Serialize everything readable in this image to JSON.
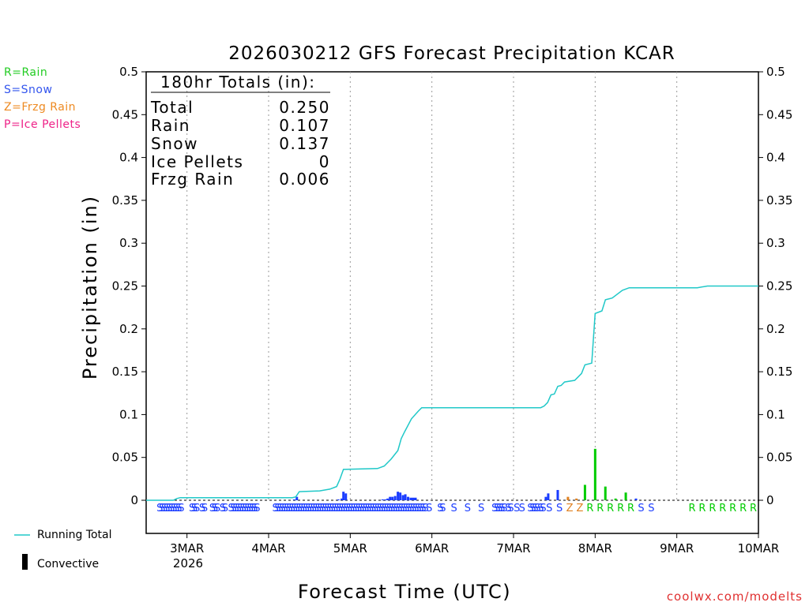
{
  "chart_data": {
    "type": "bar+line",
    "title": "2026030212 GFS Forecast Precipitation KCAR",
    "xlabel": "Forecast Time (UTC)",
    "ylabel": "Precipitation (in)",
    "ylim": [
      0,
      0.5
    ],
    "yticks": [
      0,
      0.05,
      0.1,
      0.15,
      0.2,
      0.25,
      0.3,
      0.35,
      0.4,
      0.45,
      0.5
    ],
    "ytick_labels": [
      "0",
      "0.05",
      "0.1",
      "0.15",
      "0.2",
      "0.25",
      "0.3",
      "0.35",
      "0.4",
      "0.45",
      "0.5"
    ],
    "xlim_hours": [
      0,
      180
    ],
    "xticks_hours": [
      12,
      36,
      60,
      84,
      108,
      132,
      156,
      180
    ],
    "xtick_labels": [
      "3MAR",
      "4MAR",
      "5MAR",
      "6MAR",
      "7MAR",
      "8MAR",
      "9MAR",
      "10MAR"
    ],
    "xtick_sublabel": "2026",
    "totals_header": "180hr Totals (in):",
    "totals": [
      {
        "label": "Total",
        "value": "0.250"
      },
      {
        "label": "Rain",
        "value": "0.107"
      },
      {
        "label": "Snow",
        "value": "0.137"
      },
      {
        "label": "Ice Pellets",
        "value": "0"
      },
      {
        "label": "Frzg Rain",
        "value": "0.006"
      }
    ],
    "type_legend": [
      {
        "text": "R=Rain",
        "color": "#22cc22"
      },
      {
        "text": "S=Snow",
        "color": "#3355ee"
      },
      {
        "text": "Z=Frzg Rain",
        "color": "#ee8a22"
      },
      {
        "text": "P=Ice Pellets",
        "color": "#ee2288"
      }
    ],
    "bottom_legend": {
      "running_total": "Running Total",
      "convective": "Convective"
    },
    "credit": "coolwx.com/modelts",
    "colors": {
      "rain": "#00cc00",
      "snow": "#1a3cff",
      "frzg": "#e08020",
      "running": "#20c8c8",
      "credit": "#e03030"
    },
    "running_total": [
      [
        0,
        0
      ],
      [
        8,
        0
      ],
      [
        9,
        0.002
      ],
      [
        10,
        0.003
      ],
      [
        43,
        0.003
      ],
      [
        44,
        0.004
      ],
      [
        45,
        0.01
      ],
      [
        51,
        0.011
      ],
      [
        54,
        0.013
      ],
      [
        56,
        0.016
      ],
      [
        57,
        0.025
      ],
      [
        58,
        0.036
      ],
      [
        68,
        0.037
      ],
      [
        70,
        0.04
      ],
      [
        72,
        0.048
      ],
      [
        74,
        0.058
      ],
      [
        75,
        0.072
      ],
      [
        76,
        0.08
      ],
      [
        78,
        0.095
      ],
      [
        80,
        0.104
      ],
      [
        81,
        0.108
      ],
      [
        116,
        0.108
      ],
      [
        117,
        0.11
      ],
      [
        118,
        0.114
      ],
      [
        119,
        0.123
      ],
      [
        120,
        0.124
      ],
      [
        121,
        0.133
      ],
      [
        122,
        0.134
      ],
      [
        123,
        0.138
      ],
      [
        126,
        0.14
      ],
      [
        128,
        0.148
      ],
      [
        129,
        0.158
      ],
      [
        131,
        0.16
      ],
      [
        132,
        0.218
      ],
      [
        134,
        0.221
      ],
      [
        135,
        0.234
      ],
      [
        137,
        0.236
      ],
      [
        140,
        0.245
      ],
      [
        142,
        0.248
      ],
      [
        144,
        0.248
      ],
      [
        162,
        0.248
      ],
      [
        165,
        0.25
      ],
      [
        180,
        0.25
      ]
    ],
    "bars": [
      {
        "h": 43.5,
        "v": 0.001,
        "t": "snow"
      },
      {
        "h": 44.3,
        "v": 0.004,
        "t": "snow"
      },
      {
        "h": 56.5,
        "v": 0.001,
        "t": "snow"
      },
      {
        "h": 57.5,
        "v": 0.002,
        "t": "snow"
      },
      {
        "h": 58.0,
        "v": 0.01,
        "t": "snow"
      },
      {
        "h": 58.7,
        "v": 0.008,
        "t": "snow"
      },
      {
        "h": 69.5,
        "v": 0.001,
        "t": "snow"
      },
      {
        "h": 70.3,
        "v": 0.001,
        "t": "snow"
      },
      {
        "h": 71.0,
        "v": 0.002,
        "t": "snow"
      },
      {
        "h": 71.7,
        "v": 0.004,
        "t": "snow"
      },
      {
        "h": 72.4,
        "v": 0.004,
        "t": "snow"
      },
      {
        "h": 73.2,
        "v": 0.005,
        "t": "snow"
      },
      {
        "h": 74.0,
        "v": 0.01,
        "t": "snow"
      },
      {
        "h": 74.7,
        "v": 0.009,
        "t": "snow"
      },
      {
        "h": 75.5,
        "v": 0.006,
        "t": "snow"
      },
      {
        "h": 76.2,
        "v": 0.007,
        "t": "snow"
      },
      {
        "h": 77.0,
        "v": 0.004,
        "t": "snow"
      },
      {
        "h": 77.8,
        "v": 0.003,
        "t": "snow"
      },
      {
        "h": 78.5,
        "v": 0.003,
        "t": "snow"
      },
      {
        "h": 79.2,
        "v": 0.003,
        "t": "snow"
      },
      {
        "h": 117.5,
        "v": 0.004,
        "t": "snow"
      },
      {
        "h": 118.2,
        "v": 0.008,
        "t": "snow"
      },
      {
        "h": 121.0,
        "v": 0.012,
        "t": "snow"
      },
      {
        "h": 124.0,
        "v": 0.004,
        "t": "frzg"
      },
      {
        "h": 126.5,
        "v": 0.002,
        "t": "frzg"
      },
      {
        "h": 129.0,
        "v": 0.018,
        "t": "rain"
      },
      {
        "h": 132.0,
        "v": 0.06,
        "t": "rain"
      },
      {
        "h": 135.0,
        "v": 0.016,
        "t": "rain"
      },
      {
        "h": 138.0,
        "v": 0.002,
        "t": "rain"
      },
      {
        "h": 141.0,
        "v": 0.009,
        "t": "rain"
      },
      {
        "h": 144.0,
        "v": 0.002,
        "t": "snow"
      }
    ],
    "type_letters": [
      {
        "h": 4.0,
        "l": "S"
      },
      {
        "h": 4.7,
        "l": "S"
      },
      {
        "h": 5.4,
        "l": "S"
      },
      {
        "h": 6.1,
        "l": "S"
      },
      {
        "h": 6.8,
        "l": "S"
      },
      {
        "h": 7.5,
        "l": "S"
      },
      {
        "h": 8.2,
        "l": "S"
      },
      {
        "h": 8.9,
        "l": "S"
      },
      {
        "h": 9.6,
        "l": "S"
      },
      {
        "h": 10.3,
        "l": "S"
      },
      {
        "h": 13.5,
        "l": "S"
      },
      {
        "h": 14.2,
        "l": "S"
      },
      {
        "h": 14.9,
        "l": "S"
      },
      {
        "h": 16.5,
        "l": "S"
      },
      {
        "h": 17.2,
        "l": "S"
      },
      {
        "h": 19.5,
        "l": "S"
      },
      {
        "h": 20.2,
        "l": "S"
      },
      {
        "h": 20.9,
        "l": "S"
      },
      {
        "h": 22.5,
        "l": "S"
      },
      {
        "h": 23.2,
        "l": "S"
      },
      {
        "h": 25.0,
        "l": "S"
      },
      {
        "h": 25.7,
        "l": "S"
      },
      {
        "h": 26.4,
        "l": "S"
      },
      {
        "h": 27.1,
        "l": "S"
      },
      {
        "h": 27.8,
        "l": "S"
      },
      {
        "h": 28.5,
        "l": "S"
      },
      {
        "h": 29.2,
        "l": "S"
      },
      {
        "h": 29.9,
        "l": "S"
      },
      {
        "h": 30.6,
        "l": "S"
      },
      {
        "h": 31.3,
        "l": "S"
      },
      {
        "h": 31.9,
        "l": "S"
      },
      {
        "h": 32.6,
        "l": "S"
      },
      {
        "h": 38.0,
        "l": "S"
      },
      {
        "h": 38.7,
        "l": "S"
      },
      {
        "h": 39.4,
        "l": "S"
      },
      {
        "h": 40.1,
        "l": "S"
      },
      {
        "h": 40.8,
        "l": "S"
      },
      {
        "h": 41.5,
        "l": "S"
      },
      {
        "h": 42.2,
        "l": "S"
      },
      {
        "h": 42.9,
        "l": "S"
      },
      {
        "h": 43.6,
        "l": "S"
      },
      {
        "h": 44.3,
        "l": "S"
      },
      {
        "h": 45.0,
        "l": "S"
      },
      {
        "h": 45.7,
        "l": "S"
      },
      {
        "h": 46.4,
        "l": "S"
      },
      {
        "h": 47.1,
        "l": "S"
      },
      {
        "h": 47.8,
        "l": "S"
      },
      {
        "h": 48.5,
        "l": "S"
      },
      {
        "h": 49.2,
        "l": "S"
      },
      {
        "h": 49.9,
        "l": "S"
      },
      {
        "h": 50.6,
        "l": "S"
      },
      {
        "h": 51.3,
        "l": "S"
      },
      {
        "h": 52.0,
        "l": "S"
      },
      {
        "h": 52.7,
        "l": "S"
      },
      {
        "h": 53.4,
        "l": "S"
      },
      {
        "h": 54.1,
        "l": "S"
      },
      {
        "h": 54.8,
        "l": "S"
      },
      {
        "h": 55.5,
        "l": "S"
      },
      {
        "h": 56.2,
        "l": "S"
      },
      {
        "h": 56.9,
        "l": "S"
      },
      {
        "h": 57.6,
        "l": "S"
      },
      {
        "h": 58.3,
        "l": "S"
      },
      {
        "h": 59.0,
        "l": "S"
      },
      {
        "h": 59.7,
        "l": "S"
      },
      {
        "h": 60.4,
        "l": "S"
      },
      {
        "h": 61.1,
        "l": "S"
      },
      {
        "h": 61.8,
        "l": "S"
      },
      {
        "h": 62.5,
        "l": "S"
      },
      {
        "h": 63.2,
        "l": "S"
      },
      {
        "h": 63.9,
        "l": "S"
      },
      {
        "h": 64.6,
        "l": "S"
      },
      {
        "h": 65.3,
        "l": "S"
      },
      {
        "h": 66.0,
        "l": "S"
      },
      {
        "h": 66.7,
        "l": "S"
      },
      {
        "h": 67.4,
        "l": "S"
      },
      {
        "h": 68.1,
        "l": "S"
      },
      {
        "h": 68.8,
        "l": "S"
      },
      {
        "h": 69.5,
        "l": "S"
      },
      {
        "h": 70.2,
        "l": "S"
      },
      {
        "h": 70.9,
        "l": "S"
      },
      {
        "h": 71.6,
        "l": "S"
      },
      {
        "h": 72.3,
        "l": "S"
      },
      {
        "h": 73.0,
        "l": "S"
      },
      {
        "h": 73.7,
        "l": "S"
      },
      {
        "h": 74.4,
        "l": "S"
      },
      {
        "h": 75.1,
        "l": "S"
      },
      {
        "h": 75.8,
        "l": "S"
      },
      {
        "h": 76.5,
        "l": "S"
      },
      {
        "h": 77.2,
        "l": "S"
      },
      {
        "h": 77.9,
        "l": "S"
      },
      {
        "h": 78.6,
        "l": "S"
      },
      {
        "h": 79.3,
        "l": "S"
      },
      {
        "h": 80.0,
        "l": "S"
      },
      {
        "h": 80.7,
        "l": "S"
      },
      {
        "h": 81.4,
        "l": "S"
      },
      {
        "h": 82.1,
        "l": "S"
      },
      {
        "h": 83.2,
        "l": "S"
      },
      {
        "h": 86.5,
        "l": "S"
      },
      {
        "h": 87.2,
        "l": "S"
      },
      {
        "h": 90.5,
        "l": "S"
      },
      {
        "h": 94.5,
        "l": "S"
      },
      {
        "h": 98.5,
        "l": "S"
      },
      {
        "h": 102.5,
        "l": "S"
      },
      {
        "h": 103.2,
        "l": "S"
      },
      {
        "h": 103.9,
        "l": "S"
      },
      {
        "h": 104.6,
        "l": "S"
      },
      {
        "h": 105.3,
        "l": "S"
      },
      {
        "h": 106.5,
        "l": "S"
      },
      {
        "h": 107.2,
        "l": "S"
      },
      {
        "h": 109.0,
        "l": "S"
      },
      {
        "h": 110.5,
        "l": "S"
      },
      {
        "h": 113.0,
        "l": "S"
      },
      {
        "h": 113.7,
        "l": "S"
      },
      {
        "h": 114.4,
        "l": "S"
      },
      {
        "h": 115.1,
        "l": "S"
      },
      {
        "h": 116.0,
        "l": "S"
      },
      {
        "h": 116.7,
        "l": "S"
      },
      {
        "h": 118.5,
        "l": "S"
      },
      {
        "h": 121.5,
        "l": "S"
      },
      {
        "h": 124.5,
        "l": "Z"
      },
      {
        "h": 127.5,
        "l": "Z"
      },
      {
        "h": 130.5,
        "l": "R"
      },
      {
        "h": 133.5,
        "l": "R"
      },
      {
        "h": 136.5,
        "l": "R"
      },
      {
        "h": 139.5,
        "l": "R"
      },
      {
        "h": 142.5,
        "l": "R"
      },
      {
        "h": 145.5,
        "l": "S"
      },
      {
        "h": 148.5,
        "l": "S"
      },
      {
        "h": 160.5,
        "l": "R"
      },
      {
        "h": 163.5,
        "l": "R"
      },
      {
        "h": 166.5,
        "l": "R"
      },
      {
        "h": 169.5,
        "l": "R"
      },
      {
        "h": 172.5,
        "l": "R"
      },
      {
        "h": 175.5,
        "l": "R"
      },
      {
        "h": 178.5,
        "l": "R"
      }
    ]
  }
}
